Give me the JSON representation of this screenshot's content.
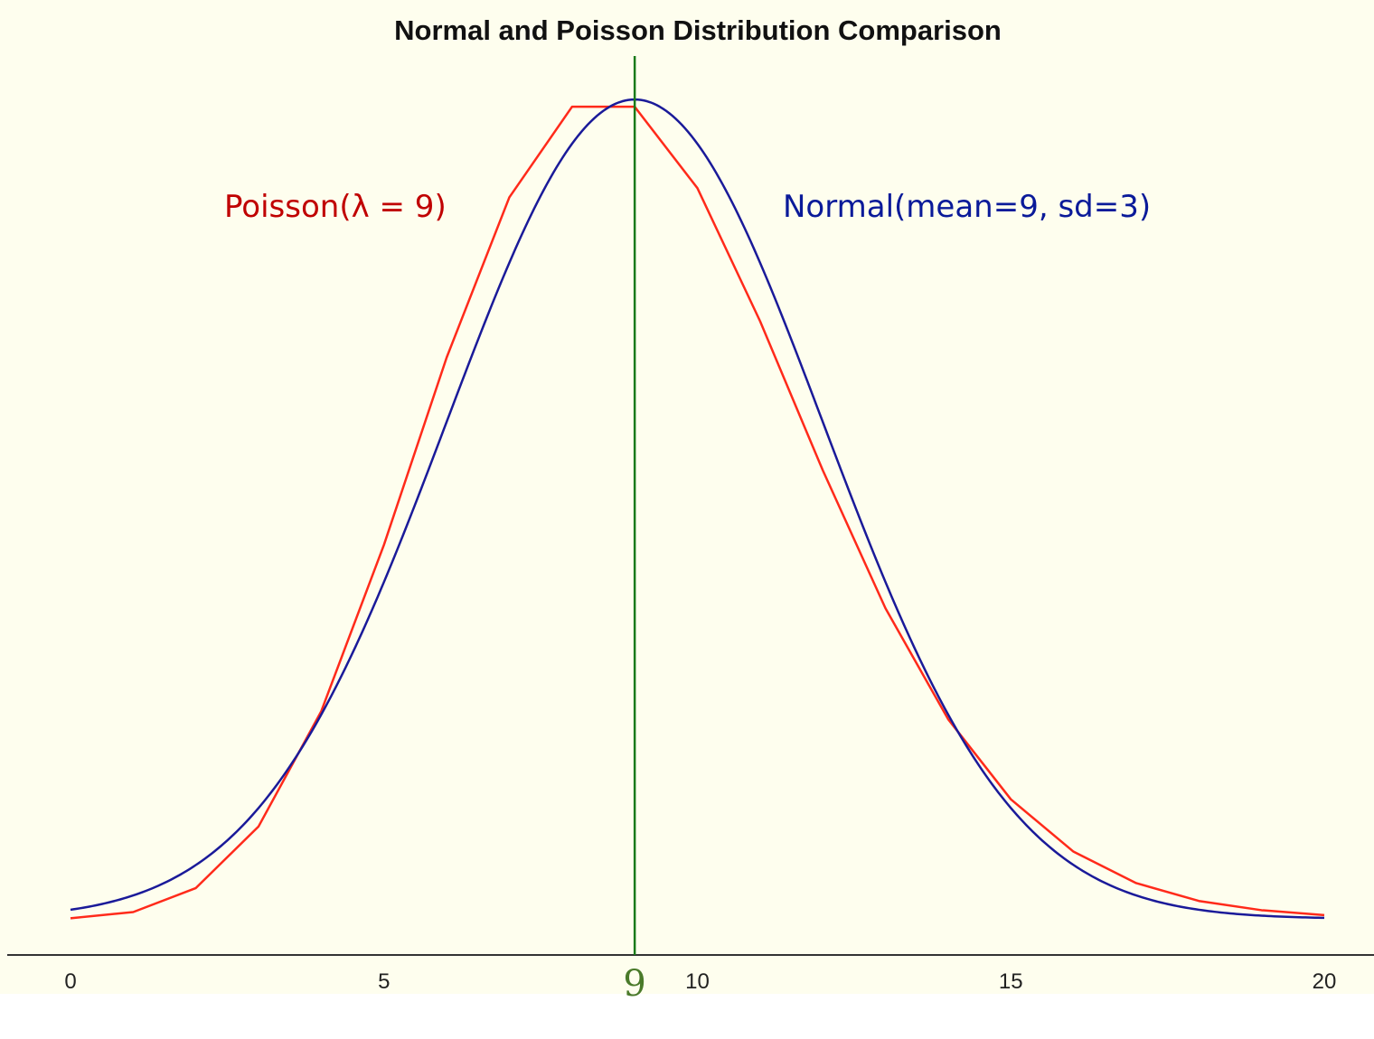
{
  "colors": {
    "plot_background": "#fefeee",
    "poisson": "#ff2a1a",
    "normal": "#1a1a99",
    "poisson_label": "#c00000",
    "normal_label": "#0a1a99",
    "marker": "#1a7a1a",
    "marker_label": "#4a7a2a",
    "axis": "#333333"
  },
  "chart_data": {
    "type": "line",
    "title": "Normal and Poisson Distribution Comparison",
    "xlabel": "",
    "ylabel": "",
    "xlim": [
      0,
      20
    ],
    "ylim": [
      0,
      0.133
    ],
    "x_ticks": [
      0,
      5,
      10,
      15,
      20
    ],
    "x_tick_labels": [
      "0",
      "5",
      "10",
      "15",
      "20"
    ],
    "y_axis_visible": false,
    "grid": false,
    "series": [
      {
        "name": "Poisson(λ = 9)",
        "kind": "poisson_pmf",
        "x": [
          0,
          1,
          2,
          3,
          4,
          5,
          6,
          7,
          8,
          9,
          10,
          11,
          12,
          13,
          14,
          15,
          16,
          17,
          18,
          19,
          20
        ],
        "values": [
          0.0001,
          0.0011,
          0.005,
          0.015,
          0.0337,
          0.0607,
          0.0911,
          0.1171,
          0.1318,
          0.1318,
          0.1186,
          0.097,
          0.0728,
          0.0504,
          0.0324,
          0.0194,
          0.0109,
          0.0058,
          0.0029,
          0.0014,
          0.0006
        ]
      },
      {
        "name": "Normal(mean=9, sd=3)",
        "kind": "normal_pdf",
        "mean": 9,
        "sd": 3,
        "x_range": [
          0,
          20
        ]
      }
    ],
    "annotations": [
      {
        "type": "vertical_line",
        "x": 9,
        "label": "9"
      }
    ]
  }
}
